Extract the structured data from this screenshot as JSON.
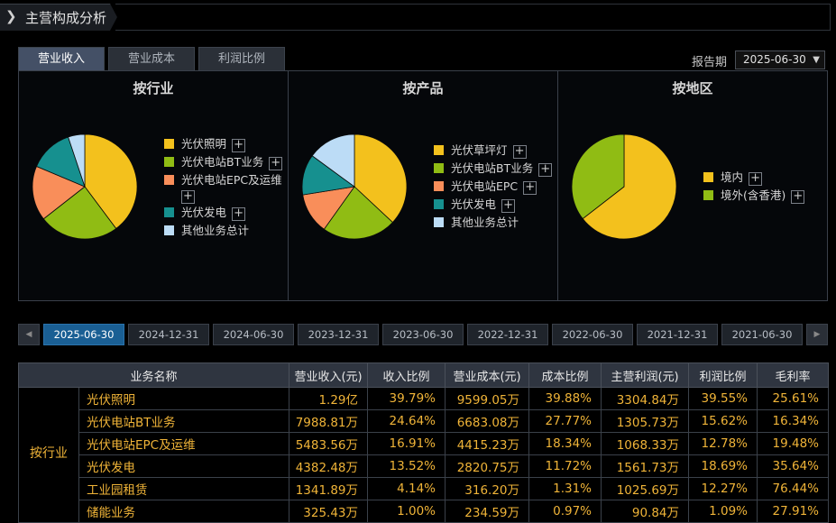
{
  "header": {
    "title": "主营构成分析"
  },
  "tabs": [
    {
      "label": "营业收入",
      "active": true
    },
    {
      "label": "营业成本",
      "active": false
    },
    {
      "label": "利润比例",
      "active": false
    }
  ],
  "report": {
    "label": "报告期",
    "value": "2025-06-30"
  },
  "panels": [
    {
      "title": "按行业",
      "slices": [
        {
          "name": "光伏照明",
          "value": 39.79,
          "color": "#f3c11d"
        },
        {
          "name": "光伏电站BT业务",
          "value": 24.64,
          "color": "#90bc14"
        },
        {
          "name": "光伏电站EPC及运维",
          "value": 16.91,
          "color": "#f98e5a"
        },
        {
          "name": "光伏发电",
          "value": 13.52,
          "color": "#16908f"
        },
        {
          "name": "其他业务总计",
          "value": 5.14,
          "color": "#bcdcf6"
        }
      ]
    },
    {
      "title": "按产品",
      "slices": [
        {
          "name": "光伏草坪灯",
          "value": 39.79,
          "color": "#f3c11d"
        },
        {
          "name": "光伏电站BT业务",
          "value": 24.64,
          "color": "#90bc14"
        },
        {
          "name": "光伏电站EPC",
          "value": 13.61,
          "color": "#f98e5a"
        },
        {
          "name": "光伏发电",
          "value": 13.52,
          "color": "#16908f"
        },
        {
          "name": "其他业务总计",
          "value": 16.09,
          "color": "#bcdcf6"
        }
      ]
    },
    {
      "title": "按地区",
      "slices": [
        {
          "name": "境内",
          "value": 64.5,
          "color": "#f3c11d"
        },
        {
          "name": "境外(含香港)",
          "value": 35.5,
          "color": "#90bc14"
        }
      ]
    }
  ],
  "date_tabs": [
    "2025-06-30",
    "2024-12-31",
    "2024-06-30",
    "2023-12-31",
    "2023-06-30",
    "2022-12-31",
    "2022-06-30",
    "2021-12-31",
    "2021-06-30"
  ],
  "pager": {
    "prev": "◀",
    "next": "▶"
  },
  "table": {
    "headers": [
      "业务名称",
      "营业收入(元)",
      "收入比例",
      "营业成本(元)",
      "成本比例",
      "主营利润(元)",
      "利润比例",
      "毛利率"
    ],
    "group": "按行业",
    "rows": [
      [
        "光伏照明",
        "1.29亿",
        "39.79%",
        "9599.05万",
        "39.88%",
        "3304.84万",
        "39.55%",
        "25.61%"
      ],
      [
        "光伏电站BT业务",
        "7988.81万",
        "24.64%",
        "6683.08万",
        "27.77%",
        "1305.73万",
        "15.62%",
        "16.34%"
      ],
      [
        "光伏电站EPC及运维",
        "5483.56万",
        "16.91%",
        "4415.23万",
        "18.34%",
        "1068.33万",
        "12.78%",
        "19.48%"
      ],
      [
        "光伏发电",
        "4382.48万",
        "13.52%",
        "2820.75万",
        "11.72%",
        "1561.73万",
        "18.69%",
        "35.64%"
      ],
      [
        "工业园租赁",
        "1341.89万",
        "4.14%",
        "316.20万",
        "1.31%",
        "1025.69万",
        "12.27%",
        "76.44%"
      ],
      [
        "储能业务",
        "325.43万",
        "1.00%",
        "234.59万",
        "0.97%",
        "90.84万",
        "1.09%",
        "27.91%"
      ]
    ]
  },
  "chart_data": [
    {
      "type": "pie",
      "title": "按行业",
      "categories": [
        "光伏照明",
        "光伏电站BT业务",
        "光伏电站EPC及运维",
        "光伏发电",
        "其他业务总计"
      ],
      "values": [
        39.79,
        24.64,
        16.91,
        13.52,
        5.14
      ]
    },
    {
      "type": "pie",
      "title": "按产品",
      "categories": [
        "光伏草坪灯",
        "光伏电站BT业务",
        "光伏电站EPC",
        "光伏发电",
        "其他业务总计"
      ],
      "values": [
        39.79,
        24.64,
        13.61,
        13.52,
        16.09
      ]
    },
    {
      "type": "pie",
      "title": "按地区",
      "categories": [
        "境内",
        "境外(含香港)"
      ],
      "values": [
        64.5,
        35.5
      ]
    }
  ]
}
